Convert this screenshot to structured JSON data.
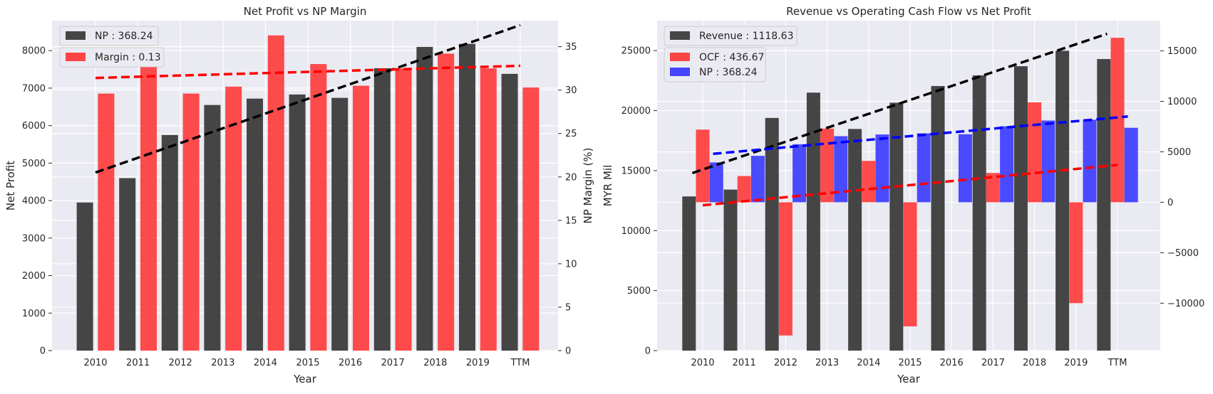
{
  "chart_data": [
    {
      "type": "bar",
      "title": "Net Profit vs NP Margin",
      "xlabel": "Year",
      "ylabel": "Net Profit",
      "ylabel_right": "NP Margin (%)",
      "categories": [
        "2010",
        "2011",
        "2012",
        "2013",
        "2014",
        "2015",
        "2016",
        "2017",
        "2018",
        "2019",
        "TTM"
      ],
      "ylim": [
        0,
        8800
      ],
      "ylim_right": [
        0,
        38
      ],
      "yticks": [
        0,
        1000,
        2000,
        3000,
        4000,
        5000,
        6000,
        7000,
        8000
      ],
      "yticks_right": [
        0,
        5,
        10,
        15,
        20,
        25,
        30,
        35
      ],
      "legend_position": "top-left",
      "grid": true,
      "series": [
        {
          "name": "NP : 368.24",
          "axis": "left",
          "color": "#333333",
          "values": [
            3950,
            4600,
            5750,
            6550,
            6720,
            6830,
            6740,
            7530,
            8100,
            8180,
            7380
          ]
        },
        {
          "name": "Margin : 0.13",
          "axis": "right",
          "color": "#ff3333",
          "values": [
            29.6,
            33.8,
            29.6,
            30.4,
            36.3,
            33.0,
            30.5,
            32.5,
            34.2,
            32.5,
            30.3
          ]
        }
      ],
      "trendlines": [
        {
          "series": "NP : 368.24",
          "axis": "left",
          "color": "#000000",
          "from": [
            0,
            4750
          ],
          "to": [
            10,
            8680
          ]
        },
        {
          "series": "Margin : 0.13",
          "axis": "right",
          "color": "#ff0000",
          "from": [
            0,
            31.4
          ],
          "to": [
            10,
            32.8
          ]
        }
      ]
    },
    {
      "type": "bar",
      "title": "Revenue vs Operating Cash Flow vs Net Profit",
      "xlabel": "Year",
      "ylabel": "MYR Mil",
      "categories": [
        "2010",
        "2011",
        "2012",
        "2013",
        "2014",
        "2015",
        "2016",
        "2017",
        "2018",
        "2019",
        "TTM"
      ],
      "ylim": [
        0,
        27500
      ],
      "ylim_right": [
        -14700,
        18000
      ],
      "yticks": [
        0,
        5000,
        10000,
        15000,
        20000,
        25000
      ],
      "yticks_right": [
        -10000,
        -5000,
        0,
        5000,
        10000,
        15000
      ],
      "legend_position": "top-left",
      "grid": true,
      "series": [
        {
          "name": "Revenue : 1118.63",
          "axis": "left",
          "color": "#333333",
          "values": [
            12850,
            13420,
            19390,
            21500,
            18470,
            20660,
            22050,
            22940,
            23700,
            24990,
            24300
          ]
        },
        {
          "name": "OCF : 436.67",
          "axis": "right",
          "color": "#ff3333",
          "values": [
            7200,
            2600,
            -13200,
            7300,
            4100,
            -12300,
            0,
            2900,
            9900,
            -10000,
            16300
          ]
        },
        {
          "name": "NP : 368.24",
          "axis": "right",
          "color": "#3333ff",
          "values": [
            3950,
            4600,
            5750,
            6550,
            6720,
            6830,
            6740,
            7530,
            8100,
            8180,
            7380
          ]
        }
      ],
      "trendlines": [
        {
          "series": "Revenue : 1118.63",
          "axis": "left",
          "color": "#000000",
          "from": [
            -0.25,
            14800
          ],
          "to": [
            9.75,
            26400
          ]
        },
        {
          "series": "OCF : 436.67",
          "axis": "right",
          "color": "#ff0000",
          "from": [
            0,
            -300
          ],
          "to": [
            10,
            3700
          ]
        },
        {
          "series": "NP : 368.24",
          "axis": "right",
          "color": "#0000ff",
          "from": [
            0.25,
            4800
          ],
          "to": [
            10.25,
            8500
          ]
        }
      ]
    }
  ]
}
